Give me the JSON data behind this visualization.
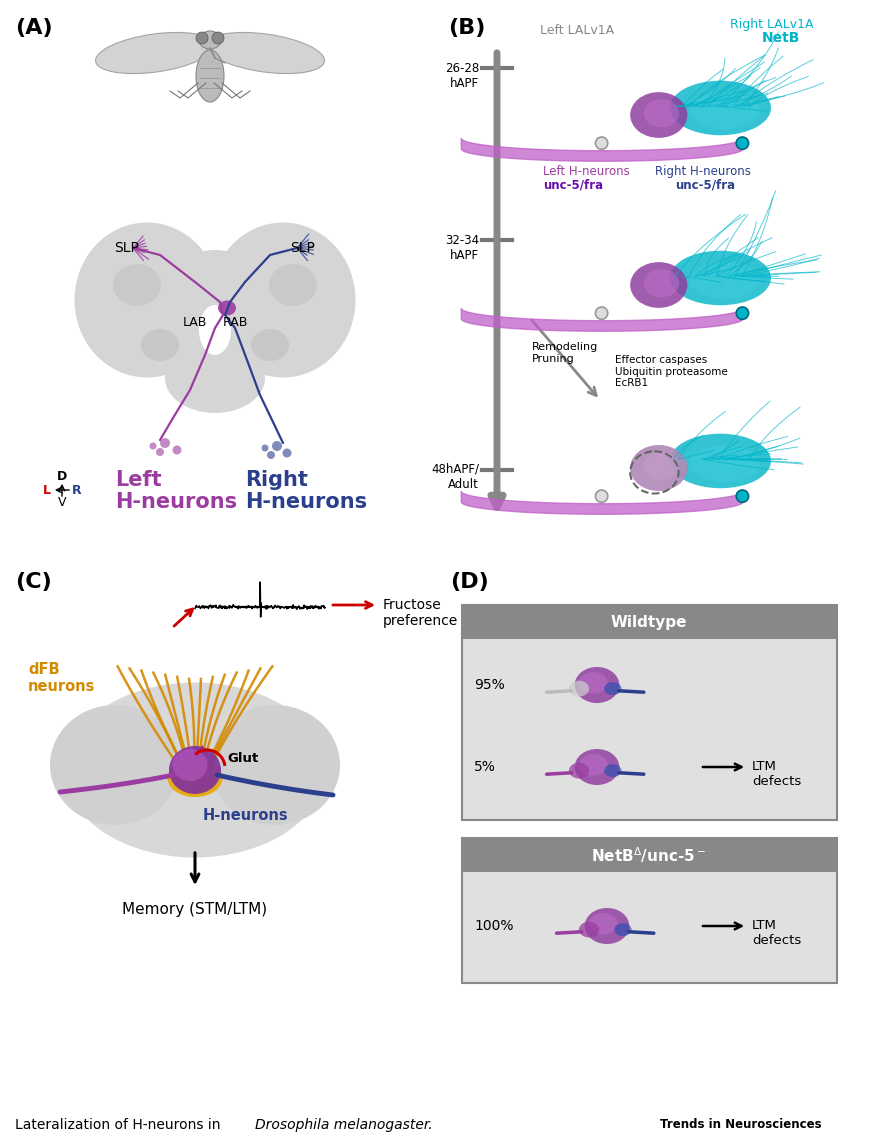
{
  "panel_A_label": "(A)",
  "panel_B_label": "(B)",
  "panel_C_label": "(C)",
  "panel_D_label": "(D)",
  "colors": {
    "left_neuron": "#9B3CA0",
    "right_neuron": "#2B3F8C",
    "brain_gray": "#D0D0D0",
    "brain_mid": "#C0C0C0",
    "teal": "#00B4C8",
    "orange": "#D48A00",
    "red": "#CC0000",
    "gray_arrow": "#888888",
    "purple_dark": "#7B1FA2",
    "pink_neuron": "#C060C0"
  },
  "trends_text": "Trends in Neurosciences"
}
